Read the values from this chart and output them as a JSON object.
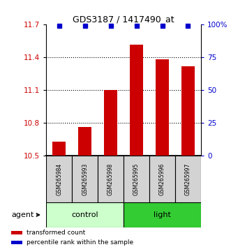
{
  "title": "GDS3187 / 1417490_at",
  "samples": [
    "GSM265984",
    "GSM265993",
    "GSM265998",
    "GSM265995",
    "GSM265996",
    "GSM265997"
  ],
  "bar_values": [
    10.63,
    10.76,
    11.1,
    11.52,
    11.38,
    11.32
  ],
  "percentile_values": [
    99,
    99,
    99,
    99,
    99,
    99
  ],
  "bar_color": "#cc0000",
  "dot_color": "#0000cc",
  "ylim": [
    10.5,
    11.7
  ],
  "y_ticks": [
    10.5,
    10.8,
    11.1,
    11.4,
    11.7
  ],
  "y2_ticks": [
    0,
    25,
    50,
    75,
    100
  ],
  "y2_labels": [
    "0",
    "25",
    "50",
    "75",
    "100%"
  ],
  "groups": [
    {
      "label": "control",
      "start": 0,
      "end": 3,
      "color": "#ccffcc"
    },
    {
      "label": "light",
      "start": 3,
      "end": 6,
      "color": "#33cc33"
    }
  ],
  "agent_label": "agent",
  "legend_items": [
    {
      "color": "#cc0000",
      "label": "transformed count"
    },
    {
      "color": "#0000cc",
      "label": "percentile rank within the sample"
    }
  ],
  "bar_bottom": 10.5,
  "bar_width": 0.5,
  "x_positions": [
    0,
    1,
    2,
    3,
    4,
    5
  ],
  "figsize": [
    3.31,
    3.54
  ],
  "dpi": 100
}
